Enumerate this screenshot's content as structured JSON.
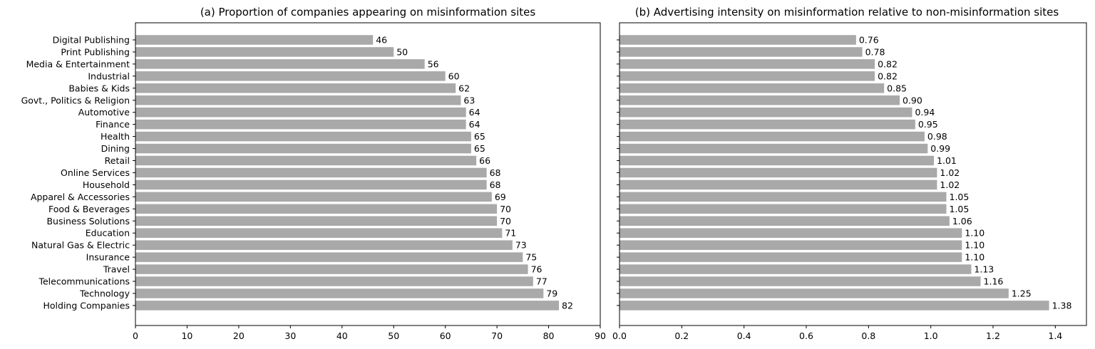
{
  "chart_data": [
    {
      "type": "bar",
      "orientation": "horizontal",
      "title": "(a) Proportion of companies appearing on misinformation sites",
      "xlabel": "",
      "ylabel": "",
      "xlim": [
        0,
        90
      ],
      "xticks": [
        "0",
        "10",
        "20",
        "30",
        "40",
        "50",
        "60",
        "70",
        "80",
        "90"
      ],
      "bar_color": "#a9a9a9",
      "categories": [
        "Digital Publishing",
        "Print Publishing",
        "Media & Entertainment",
        "Industrial",
        "Babies & Kids",
        "Govt., Politics & Religion",
        "Automotive",
        "Finance",
        "Health",
        "Dining",
        "Retail",
        "Online Services",
        "Household",
        "Apparel & Accessories",
        "Food & Beverages",
        "Business Solutions",
        "Education",
        "Natural Gas & Electric",
        "Insurance",
        "Travel",
        "Telecommunications",
        "Technology",
        "Holding Companies"
      ],
      "values": [
        46,
        50,
        56,
        60,
        62,
        63,
        64,
        64,
        65,
        65,
        66,
        68,
        68,
        69,
        70,
        70,
        71,
        73,
        75,
        76,
        77,
        79,
        82
      ],
      "value_labels": [
        "46",
        "50",
        "56",
        "60",
        "62",
        "63",
        "64",
        "64",
        "65",
        "65",
        "66",
        "68",
        "68",
        "69",
        "70",
        "70",
        "71",
        "73",
        "75",
        "76",
        "77",
        "79",
        "82"
      ]
    },
    {
      "type": "bar",
      "orientation": "horizontal",
      "title": "(b) Advertising intensity on misinformation relative to non-misinformation sites",
      "xlabel": "",
      "ylabel": "",
      "xlim": [
        0,
        1.5
      ],
      "xticks": [
        "0.0",
        "0.2",
        "0.4",
        "0.6",
        "0.8",
        "1.0",
        "1.2",
        "1.4"
      ],
      "bar_color": "#a9a9a9",
      "values": [
        0.76,
        0.78,
        0.82,
        0.82,
        0.85,
        0.9,
        0.94,
        0.95,
        0.98,
        0.99,
        1.01,
        1.02,
        1.02,
        1.05,
        1.05,
        1.06,
        1.1,
        1.1,
        1.1,
        1.13,
        1.16,
        1.25,
        1.38
      ],
      "value_labels": [
        "0.76",
        "0.78",
        "0.82",
        "0.82",
        "0.85",
        "0.90",
        "0.94",
        "0.95",
        "0.98",
        "0.99",
        "1.01",
        "1.02",
        "1.02",
        "1.05",
        "1.05",
        "1.06",
        "1.10",
        "1.10",
        "1.10",
        "1.13",
        "1.16",
        "1.25",
        "1.38"
      ]
    }
  ]
}
